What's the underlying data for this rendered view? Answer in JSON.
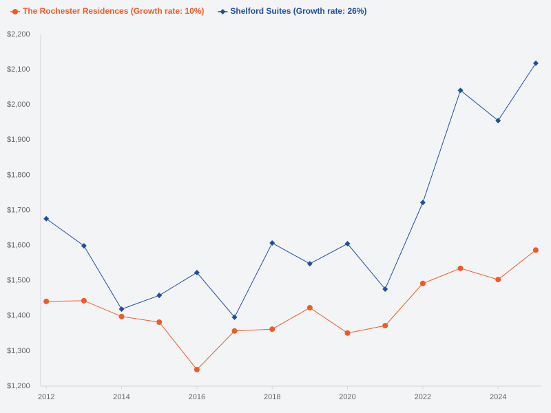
{
  "chart_data": {
    "type": "line",
    "x": [
      2012,
      2013,
      2014,
      2015,
      2016,
      2017,
      2018,
      2019,
      2020,
      2021,
      2022,
      2023,
      2024,
      2025
    ],
    "series": [
      {
        "name": "The Rochester Residences (Growth rate: 10%)",
        "color": "#f05a28",
        "marker": "circle",
        "values": [
          1441,
          1443,
          1398,
          1382,
          1247,
          1357,
          1362,
          1423,
          1351,
          1372,
          1492,
          1535,
          1503,
          1587
        ]
      },
      {
        "name": "Shelford Suites (Growth rate: 26%)",
        "color": "#1f4e9c",
        "marker": "diamond",
        "values": [
          1676,
          1599,
          1419,
          1458,
          1523,
          1396,
          1607,
          1548,
          1605,
          1476,
          1722,
          2041,
          1955,
          2118
        ]
      }
    ],
    "xlim": [
      2011.85,
      2025.13
    ],
    "xticks": [
      2012,
      2014,
      2016,
      2018,
      2020,
      2022,
      2024
    ],
    "ylim": [
      1200,
      2200
    ],
    "yticks": [
      {
        "value": 1200,
        "label": "$1,200"
      },
      {
        "value": 1300,
        "label": "$1,300"
      },
      {
        "value": 1400,
        "label": "$1,400"
      },
      {
        "value": 1500,
        "label": "$1,500"
      },
      {
        "value": 1600,
        "label": "$1,600"
      },
      {
        "value": 1700,
        "label": "$1,700"
      },
      {
        "value": 1800,
        "label": "$1,800"
      },
      {
        "value": 1900,
        "label": "$1,900"
      },
      {
        "value": 2000,
        "label": "$2,000"
      },
      {
        "value": 2100,
        "label": "$2,100"
      },
      {
        "value": 2200,
        "label": "$2,200"
      }
    ],
    "grid": false,
    "legend": "top-left"
  }
}
